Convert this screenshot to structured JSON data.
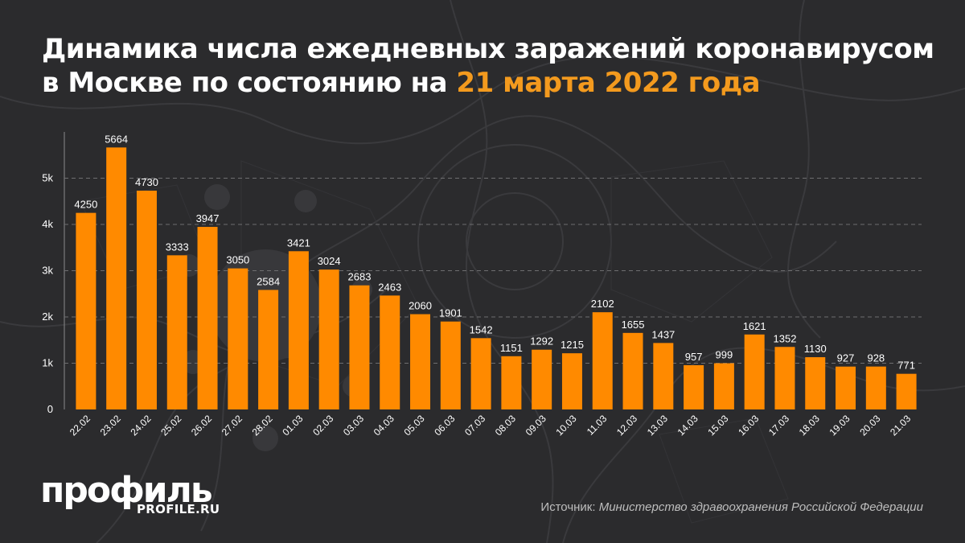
{
  "title": {
    "line1": "Динамика числа ежедневных заражений коронавирусом",
    "line2_prefix": "в Москве по состоянию на ",
    "line2_highlight": "21 марта 2022 года"
  },
  "logo": {
    "main": "профиль",
    "sub": "PROFILE.RU"
  },
  "source": {
    "label": "Источник: ",
    "text": "Министерство здравоохранения Российской Федерации"
  },
  "colors": {
    "bar": "#ff8a00",
    "accent": "#f39a1e",
    "background": "#2b2b2d",
    "text": "#ffffff"
  },
  "chart_data": {
    "type": "bar",
    "categories": [
      "22.02",
      "23.02",
      "24.02",
      "25.02",
      "26.02",
      "27.02",
      "28.02",
      "01.03",
      "02.03",
      "03.03",
      "04.03",
      "05.03",
      "06.03",
      "07.03",
      "08.03",
      "09.03",
      "10.03",
      "11.03",
      "12.03",
      "13.03",
      "14.03",
      "15.03",
      "16.03",
      "17.03",
      "18.03",
      "19.03",
      "20.03",
      "21.03"
    ],
    "values": [
      4250,
      5664,
      4730,
      3333,
      3947,
      3050,
      2584,
      3421,
      3024,
      2683,
      2463,
      2060,
      1901,
      1542,
      1151,
      1292,
      1215,
      2102,
      1655,
      1437,
      957,
      999,
      1621,
      1352,
      1130,
      927,
      928,
      771
    ],
    "yticks": [
      "0",
      "1k",
      "2k",
      "3k",
      "4k",
      "5k"
    ],
    "ylim": [
      0,
      6000
    ],
    "grid": true,
    "data_labels": true
  }
}
